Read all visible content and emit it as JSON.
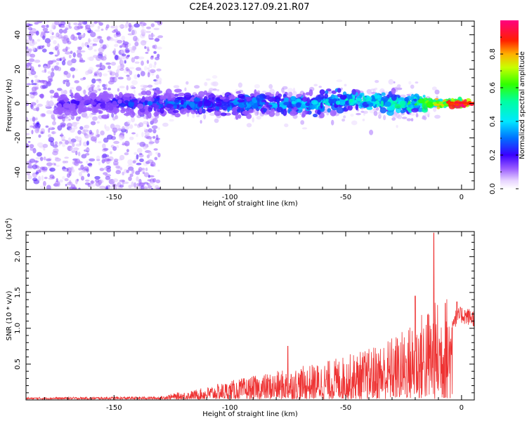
{
  "title": "C2E4.2023.127.09.21.R07",
  "chart_data": [
    {
      "type": "heatmap",
      "xlabel": "Height of straight line (km)",
      "ylabel": "Frequency (Hz)",
      "xlim": [
        -188,
        5.5
      ],
      "ylim": [
        -50,
        48
      ],
      "xticks": [
        -150,
        -100,
        -50,
        0
      ],
      "yticks": [
        -40,
        -20,
        0,
        20,
        40
      ],
      "colorbar": {
        "label": "Normalized spectral amplitude",
        "range": [
          0,
          1
        ],
        "ticks": [
          "0.0",
          "0.2",
          "0.4",
          "0.6",
          "0.8"
        ]
      },
      "band": {
        "center_frequency_hz": 0,
        "description_points": [
          {
            "x": -160,
            "amp": 0.2
          },
          {
            "x": -130,
            "amp": 0.3
          },
          {
            "x": -100,
            "amp": 0.35
          },
          {
            "x": -50,
            "amp": 0.45
          },
          {
            "x": -20,
            "amp": 0.55
          },
          {
            "x": 0,
            "amp": 0.95
          }
        ]
      }
    },
    {
      "type": "line",
      "xlabel": "Height of straight line (km)",
      "ylabel": "SNR (10 * v/v)",
      "y_multiplier": "(x10",
      "y_multiplier_exp": "4",
      "y_multiplier_close": ")",
      "xlim": [
        -188,
        5.5
      ],
      "ylim": [
        0,
        2.35
      ],
      "xticks": [
        -150,
        -100,
        -50,
        0
      ],
      "yticks": [
        "0.5",
        "1.0",
        "1.5",
        "2.0"
      ],
      "color": "#ee3333",
      "envelope": [
        {
          "x": -188,
          "y": 0.02
        },
        {
          "x": -130,
          "y": 0.03
        },
        {
          "x": -125,
          "y": 0.06
        },
        {
          "x": -115,
          "y": 0.1
        },
        {
          "x": -100,
          "y": 0.2
        },
        {
          "x": -80,
          "y": 0.3
        },
        {
          "x": -60,
          "y": 0.4
        },
        {
          "x": -40,
          "y": 0.55
        },
        {
          "x": -25,
          "y": 0.75
        },
        {
          "x": -15,
          "y": 1.0
        },
        {
          "x": -5,
          "y": 1.15
        },
        {
          "x": 0,
          "y": 1.25
        },
        {
          "x": 5.5,
          "y": 1.2
        }
      ],
      "peaks": [
        {
          "x": -12,
          "y": 2.33
        },
        {
          "x": -75,
          "y": 0.75
        },
        {
          "x": -20,
          "y": 1.45
        },
        {
          "x": -7,
          "y": 1.35
        },
        {
          "x": -2,
          "y": 1.37
        }
      ]
    }
  ]
}
